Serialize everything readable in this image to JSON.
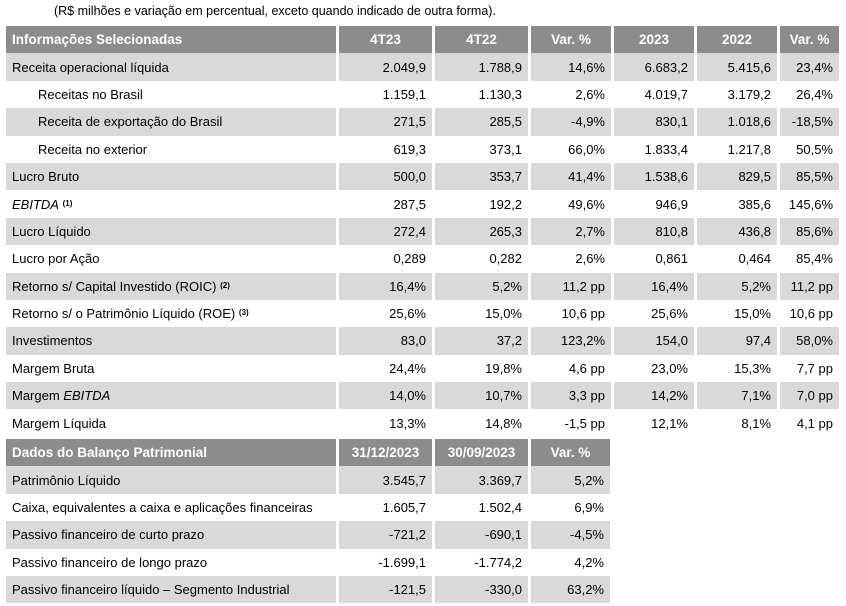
{
  "note": "(R$ milhões e variação em percentual, exceto quando indicado de outra forma).",
  "selected": {
    "headers": [
      "Informações Selecionadas",
      "4T23",
      "4T22",
      "Var. %",
      "2023",
      "2022",
      "Var. %"
    ],
    "rows": [
      {
        "label": "Receita operacional líquida",
        "values": [
          "2.049,9",
          "1.788,9",
          "14,6%",
          "6.683,2",
          "5.415,6",
          "23,4%"
        ]
      },
      {
        "label": "Receitas no Brasil",
        "values": [
          "1.159,1",
          "1.130,3",
          "2,6%",
          "4.019,7",
          "3.179,2",
          "26,4%"
        ]
      },
      {
        "label": "Receita de exportação do Brasil",
        "values": [
          "271,5",
          "285,5",
          "-4,9%",
          "830,1",
          "1.018,6",
          "-18,5%"
        ]
      },
      {
        "label": "Receita no exterior",
        "values": [
          "619,3",
          "373,1",
          "66,0%",
          "1.833,4",
          "1.217,8",
          "50,5%"
        ]
      },
      {
        "label": "Lucro Bruto",
        "values": [
          "500,0",
          "353,7",
          "41,4%",
          "1.538,6",
          "829,5",
          "85,5%"
        ]
      },
      {
        "label": "EBITDA",
        "note": "(1)",
        "values": [
          "287,5",
          "192,2",
          "49,6%",
          "946,9",
          "385,6",
          "145,6%"
        ]
      },
      {
        "label": "Lucro Líquido",
        "values": [
          "272,4",
          "265,3",
          "2,7%",
          "810,8",
          "436,8",
          "85,6%"
        ]
      },
      {
        "label": "Lucro por Ação",
        "values": [
          "0,289",
          "0,282",
          "2,6%",
          "0,861",
          "0,464",
          "85,4%"
        ]
      },
      {
        "label": "Retorno s/ Capital Investido (ROIC)",
        "note": "(2)",
        "values": [
          "16,4%",
          "5,2%",
          "11,2 pp",
          "16,4%",
          "5,2%",
          "11,2 pp"
        ]
      },
      {
        "label": "Retorno s/ o Patrimônio Líquido (ROE)",
        "note": "(3)",
        "values": [
          "25,6%",
          "15,0%",
          "10,6 pp",
          "25,6%",
          "15,0%",
          "10,6 pp"
        ]
      },
      {
        "label": "Investimentos",
        "values": [
          "83,0",
          "37,2",
          "123,2%",
          "154,0",
          "97,4",
          "58,0%"
        ]
      },
      {
        "label": "Margem Bruta",
        "values": [
          "24,4%",
          "19,8%",
          "4,6 pp",
          "23,0%",
          "15,3%",
          "7,7 pp"
        ]
      },
      {
        "label_prefix": "Margem",
        "label_italic": "EBITDA",
        "values": [
          "14,0%",
          "10,7%",
          "3,3 pp",
          "14,2%",
          "7,1%",
          "7,0 pp"
        ]
      },
      {
        "label": "Margem Líquida",
        "values": [
          "13,3%",
          "14,8%",
          "-1,5 pp",
          "12,1%",
          "8,1%",
          "4,1 pp"
        ]
      }
    ]
  },
  "balance": {
    "headers": [
      "Dados do Balanço Patrimonial",
      "31/12/2023",
      "30/09/2023",
      "Var. %"
    ],
    "rows": [
      {
        "label": "Patrimônio Líquido",
        "values": [
          "3.545,7",
          "3.369,7",
          "5,2%"
        ]
      },
      {
        "label": "Caixa, equivalentes a caixa e aplicações financeiras",
        "values": [
          "1.605,7",
          "1.502,4",
          "6,9%"
        ]
      },
      {
        "label": "Passivo financeiro de curto prazo",
        "values": [
          "-721,2",
          "-690,1",
          "-4,5%"
        ]
      },
      {
        "label": "Passivo financeiro de longo prazo",
        "values": [
          "-1.699,1",
          "-1.774,2",
          "4,2%"
        ]
      },
      {
        "label": "Passivo financeiro líquido – Segmento Industrial",
        "values": [
          "-121,5",
          "-330,0",
          "63,2%"
        ]
      }
    ]
  }
}
